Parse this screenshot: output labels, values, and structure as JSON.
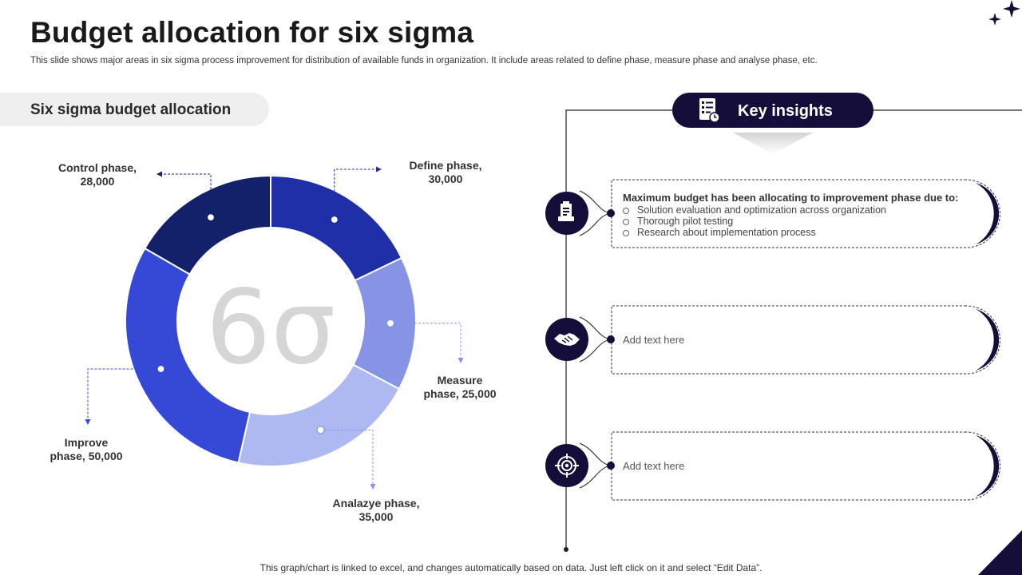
{
  "title": "Budget allocation for six sigma",
  "subtitle": "This slide shows major areas in six sigma process improvement for distribution of available funds in organization. It include areas related to define phase, measure phase and analyse phase, etc.",
  "section_title": "Six sigma budget allocation",
  "center_symbol": "6σ",
  "chart_data": {
    "type": "pie",
    "donut": true,
    "categories": [
      "Define phase",
      "Measure phase",
      "Analazye phase",
      "Improve phase",
      "Control phase"
    ],
    "values": [
      30000,
      25000,
      35000,
      50000,
      28000
    ],
    "labels": [
      {
        "line1": "Define phase,",
        "line2": "30,000"
      },
      {
        "line1": "Measure",
        "line2": "phase, 25,000"
      },
      {
        "line1": "Analazye phase,",
        "line2": "35,000"
      },
      {
        "line1": "Improve",
        "line2": "phase, 50,000"
      },
      {
        "line1": "Control phase,",
        "line2": "28,000"
      }
    ],
    "colors": [
      "#1f2fa8",
      "#8794e6",
      "#aeb9f1",
      "#3549d6",
      "#13206a"
    ]
  },
  "insights": {
    "title": "Key insights",
    "cards": [
      {
        "heading": "Maximum budget has been allocating to improvement phase due to:",
        "bullets": [
          "Solution evaluation and optimization across organization",
          "Thorough pilot testing",
          "Research about implementation process"
        ]
      },
      {
        "text": "Add text here"
      },
      {
        "text": "Add text here"
      }
    ],
    "icons": [
      "report-icon",
      "handshake-icon",
      "target-icon"
    ]
  },
  "footer": "This graph/chart is linked to excel, and changes automatically based on data. Just left click on it and select “Edit Data”.",
  "colors": {
    "navy": "#160e3a",
    "accent_blue": "#3549d6"
  }
}
